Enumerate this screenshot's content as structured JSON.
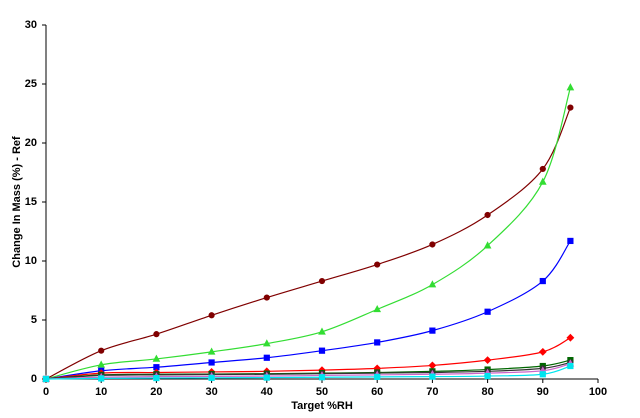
{
  "chart_data": {
    "type": "line",
    "x_label": "Target %RH",
    "y_label": "Change In Mass (%)  - Ref",
    "x": [
      0,
      10,
      20,
      30,
      40,
      50,
      60,
      70,
      80,
      90,
      95
    ],
    "series": [
      {
        "color": "#800000",
        "marker": "circle",
        "values": [
          0,
          2.4,
          3.8,
          5.4,
          6.9,
          8.3,
          9.7,
          11.4,
          13.9,
          17.8,
          23.0
        ]
      },
      {
        "color": "#33dd33",
        "marker": "triangle",
        "values": [
          0,
          1.2,
          1.7,
          2.3,
          3.0,
          4.0,
          5.9,
          8.0,
          11.3,
          16.7,
          24.7
        ]
      },
      {
        "color": "#0000ff",
        "marker": "square",
        "values": [
          0,
          0.7,
          1.0,
          1.4,
          1.8,
          2.4,
          3.1,
          4.1,
          5.7,
          8.3,
          11.7
        ]
      },
      {
        "color": "#ff0000",
        "marker": "diamond",
        "values": [
          0,
          0.5,
          0.55,
          0.6,
          0.65,
          0.75,
          0.9,
          1.15,
          1.6,
          2.3,
          3.5
        ]
      },
      {
        "color": "#006600",
        "marker": "square",
        "values": [
          0,
          0.35,
          0.4,
          0.42,
          0.45,
          0.5,
          0.55,
          0.65,
          0.8,
          1.1,
          1.6
        ]
      },
      {
        "color": "#333333",
        "marker": "circle",
        "values": [
          0,
          0.3,
          0.35,
          0.38,
          0.4,
          0.45,
          0.5,
          0.55,
          0.65,
          0.9,
          1.4
        ]
      },
      {
        "color": "#cc66cc",
        "marker": "triangle",
        "values": [
          0,
          0.15,
          0.2,
          0.22,
          0.25,
          0.3,
          0.35,
          0.4,
          0.5,
          0.7,
          1.3
        ]
      },
      {
        "color": "#00e5ee",
        "marker": "square",
        "values": [
          0,
          0.05,
          0.08,
          0.1,
          0.12,
          0.15,
          0.18,
          0.2,
          0.25,
          0.4,
          1.1
        ]
      }
    ],
    "xlim": [
      0,
      100
    ],
    "xticks": [
      0,
      10,
      20,
      30,
      40,
      50,
      60,
      70,
      80,
      90,
      100
    ],
    "ylim": [
      0,
      30
    ],
    "yticks": [
      0,
      5,
      10,
      15,
      20,
      25,
      30
    ],
    "grid": false
  }
}
